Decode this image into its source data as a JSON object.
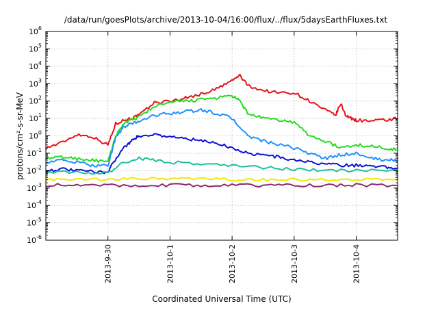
{
  "chart_data": {
    "type": "line",
    "title": "/data/run/goesPlots/archive/2013-10-04/16:00/flux/../flux/5daysEarthFluxes.txt",
    "xlabel": "Coordinated Universal Time (UTC)",
    "ylabel": "protons/cm²-s-sr-MeV",
    "y_scale": "log",
    "ylim": [
      1e-06,
      1000000.0
    ],
    "y_ticks": [
      {
        "value": 1e-06,
        "base": "10",
        "exp": "-6"
      },
      {
        "value": 1e-05,
        "base": "10",
        "exp": "-5"
      },
      {
        "value": 0.0001,
        "base": "10",
        "exp": "-4"
      },
      {
        "value": 0.001,
        "base": "10",
        "exp": "-3"
      },
      {
        "value": 0.01,
        "base": "10",
        "exp": "-2"
      },
      {
        "value": 0.1,
        "base": "10",
        "exp": "-1"
      },
      {
        "value": 1,
        "base": "10",
        "exp": "0"
      },
      {
        "value": 10,
        "base": "10",
        "exp": "1"
      },
      {
        "value": 100,
        "base": "10",
        "exp": "2"
      },
      {
        "value": 1000,
        "base": "10",
        "exp": "3"
      },
      {
        "value": 10000,
        "base": "10",
        "exp": "4"
      },
      {
        "value": 100000,
        "base": "10",
        "exp": "5"
      },
      {
        "value": 1000000,
        "base": "10",
        "exp": "6"
      }
    ],
    "xlim": [
      "2013-09-29 00:00",
      "2013-10-04 16:00"
    ],
    "x_ticks": [
      {
        "value": "2013-09-30 00:00",
        "label": "2013-9-30"
      },
      {
        "value": "2013-10-01 00:00",
        "label": "2013-10-1"
      },
      {
        "value": "2013-10-02 00:00",
        "label": "2013-10-2"
      },
      {
        "value": "2013-10-03 00:00",
        "label": "2013-10-3"
      },
      {
        "value": "2013-10-04 00:00",
        "label": "2013-10-4"
      }
    ],
    "grid": true,
    "series": [
      {
        "color": "#e8101a",
        "x": [
          "2013-09-29 00:00",
          "2013-09-29 06:00",
          "2013-09-29 12:00",
          "2013-09-29 18:00",
          "2013-09-30 00:00",
          "2013-09-30 03:00",
          "2013-09-30 06:00",
          "2013-09-30 09:00",
          "2013-09-30 12:00",
          "2013-09-30 18:00",
          "2013-10-01 00:00",
          "2013-10-01 06:00",
          "2013-10-01 12:00",
          "2013-10-01 18:00",
          "2013-10-02 00:00",
          "2013-10-02 03:00",
          "2013-10-02 06:00",
          "2013-10-02 12:00",
          "2013-10-02 18:00",
          "2013-10-03 00:00",
          "2013-10-03 06:00",
          "2013-10-03 12:00",
          "2013-10-03 16:00",
          "2013-10-03 18:00",
          "2013-10-03 20:00",
          "2013-10-03 22:00",
          "2013-10-04 00:00",
          "2013-10-04 06:00",
          "2013-10-04 12:00",
          "2013-10-04 16:00"
        ],
        "y": [
          0.2,
          0.4,
          1.2,
          0.9,
          0.3,
          5,
          8,
          10,
          15,
          80,
          100,
          150,
          250,
          500,
          1500,
          3000,
          800,
          400,
          300,
          300,
          100,
          30,
          15,
          70,
          15,
          10,
          8,
          7,
          8,
          10
        ]
      },
      {
        "color": "#22dd22",
        "x": [
          "2013-09-29 00:00",
          "2013-09-29 06:00",
          "2013-09-29 12:00",
          "2013-09-29 18:00",
          "2013-09-30 00:00",
          "2013-09-30 03:00",
          "2013-09-30 06:00",
          "2013-09-30 09:00",
          "2013-09-30 12:00",
          "2013-09-30 18:00",
          "2013-10-01 00:00",
          "2013-10-01 06:00",
          "2013-10-01 12:00",
          "2013-10-01 18:00",
          "2013-10-02 00:00",
          "2013-10-02 03:00",
          "2013-10-02 06:00",
          "2013-10-02 12:00",
          "2013-10-02 18:00",
          "2013-10-03 00:00",
          "2013-10-03 06:00",
          "2013-10-03 12:00",
          "2013-10-03 18:00",
          "2013-10-04 00:00",
          "2013-10-04 06:00",
          "2013-10-04 12:00",
          "2013-10-04 16:00"
        ],
        "y": [
          0.05,
          0.06,
          0.05,
          0.04,
          0.03,
          1,
          5,
          8,
          12,
          50,
          80,
          100,
          120,
          150,
          200,
          100,
          20,
          10,
          8,
          6,
          1,
          0.5,
          0.2,
          0.3,
          0.25,
          0.2,
          0.15
        ]
      },
      {
        "color": "#1e90ff",
        "x": [
          "2013-09-29 00:00",
          "2013-09-29 06:00",
          "2013-09-29 12:00",
          "2013-09-29 18:00",
          "2013-09-30 00:00",
          "2013-09-30 03:00",
          "2013-09-30 06:00",
          "2013-09-30 09:00",
          "2013-09-30 12:00",
          "2013-09-30 18:00",
          "2013-10-01 00:00",
          "2013-10-01 06:00",
          "2013-10-01 12:00",
          "2013-10-01 18:00",
          "2013-10-02 00:00",
          "2013-10-02 06:00",
          "2013-10-02 12:00",
          "2013-10-02 18:00",
          "2013-10-03 00:00",
          "2013-10-03 06:00",
          "2013-10-03 12:00",
          "2013-10-03 18:00",
          "2013-10-04 00:00",
          "2013-10-04 06:00",
          "2013-10-04 12:00",
          "2013-10-04 16:00"
        ],
        "y": [
          0.03,
          0.04,
          0.03,
          0.02,
          0.02,
          0.8,
          3,
          5,
          7,
          15,
          20,
          25,
          30,
          20,
          10,
          1,
          0.5,
          0.3,
          0.2,
          0.1,
          0.05,
          0.08,
          0.1,
          0.05,
          0.04,
          0.04
        ]
      },
      {
        "color": "#0a10d8",
        "x": [
          "2013-09-29 00:00",
          "2013-09-29 06:00",
          "2013-09-29 12:00",
          "2013-09-29 18:00",
          "2013-09-30 00:00",
          "2013-09-30 03:00",
          "2013-09-30 06:00",
          "2013-09-30 09:00",
          "2013-09-30 12:00",
          "2013-09-30 18:00",
          "2013-10-01 00:00",
          "2013-10-01 06:00",
          "2013-10-01 12:00",
          "2013-10-01 18:00",
          "2013-10-02 00:00",
          "2013-10-02 06:00",
          "2013-10-02 12:00",
          "2013-10-02 18:00",
          "2013-10-03 00:00",
          "2013-10-03 06:00",
          "2013-10-03 12:00",
          "2013-10-03 18:00",
          "2013-10-04 00:00",
          "2013-10-04 06:00",
          "2013-10-04 12:00",
          "2013-10-04 16:00"
        ],
        "y": [
          0.01,
          0.012,
          0.01,
          0.009,
          0.008,
          0.05,
          0.2,
          0.5,
          1,
          1.2,
          0.9,
          0.7,
          0.5,
          0.4,
          0.2,
          0.1,
          0.08,
          0.06,
          0.04,
          0.03,
          0.025,
          0.02,
          0.02,
          0.02,
          0.015,
          0.015
        ]
      },
      {
        "color": "#1fbf9b",
        "x": [
          "2013-09-29 00:00",
          "2013-09-29 12:00",
          "2013-09-30 00:00",
          "2013-09-30 06:00",
          "2013-09-30 12:00",
          "2013-09-30 18:00",
          "2013-10-01 00:00",
          "2013-10-01 12:00",
          "2013-10-02 00:00",
          "2013-10-02 12:00",
          "2013-10-03 00:00",
          "2013-10-03 12:00",
          "2013-10-04 00:00",
          "2013-10-04 16:00"
        ],
        "y": [
          0.008,
          0.008,
          0.007,
          0.03,
          0.05,
          0.04,
          0.03,
          0.025,
          0.02,
          0.015,
          0.012,
          0.01,
          0.01,
          0.01
        ]
      },
      {
        "color": "#f0e800",
        "x": [
          "2013-09-29 00:00",
          "2013-09-29 12:00",
          "2013-09-30 00:00",
          "2013-09-30 12:00",
          "2013-10-01 00:00",
          "2013-10-01 12:00",
          "2013-10-02 00:00",
          "2013-10-02 12:00",
          "2013-10-03 00:00",
          "2013-10-03 12:00",
          "2013-10-04 00:00",
          "2013-10-04 16:00"
        ],
        "y": [
          0.003,
          0.003,
          0.003,
          0.0035,
          0.0035,
          0.0033,
          0.003,
          0.003,
          0.003,
          0.003,
          0.003,
          0.003
        ]
      },
      {
        "color": "#8b2a6e",
        "x": [
          "2013-09-29 00:00",
          "2013-09-29 12:00",
          "2013-09-30 00:00",
          "2013-09-30 12:00",
          "2013-10-01 00:00",
          "2013-10-01 12:00",
          "2013-10-02 00:00",
          "2013-10-02 12:00",
          "2013-10-03 00:00",
          "2013-10-03 12:00",
          "2013-10-04 00:00",
          "2013-10-04 16:00"
        ],
        "y": [
          0.0015,
          0.0014,
          0.0015,
          0.0014,
          0.0015,
          0.0014,
          0.0015,
          0.0014,
          0.0015,
          0.0014,
          0.0015,
          0.0014
        ]
      }
    ]
  }
}
